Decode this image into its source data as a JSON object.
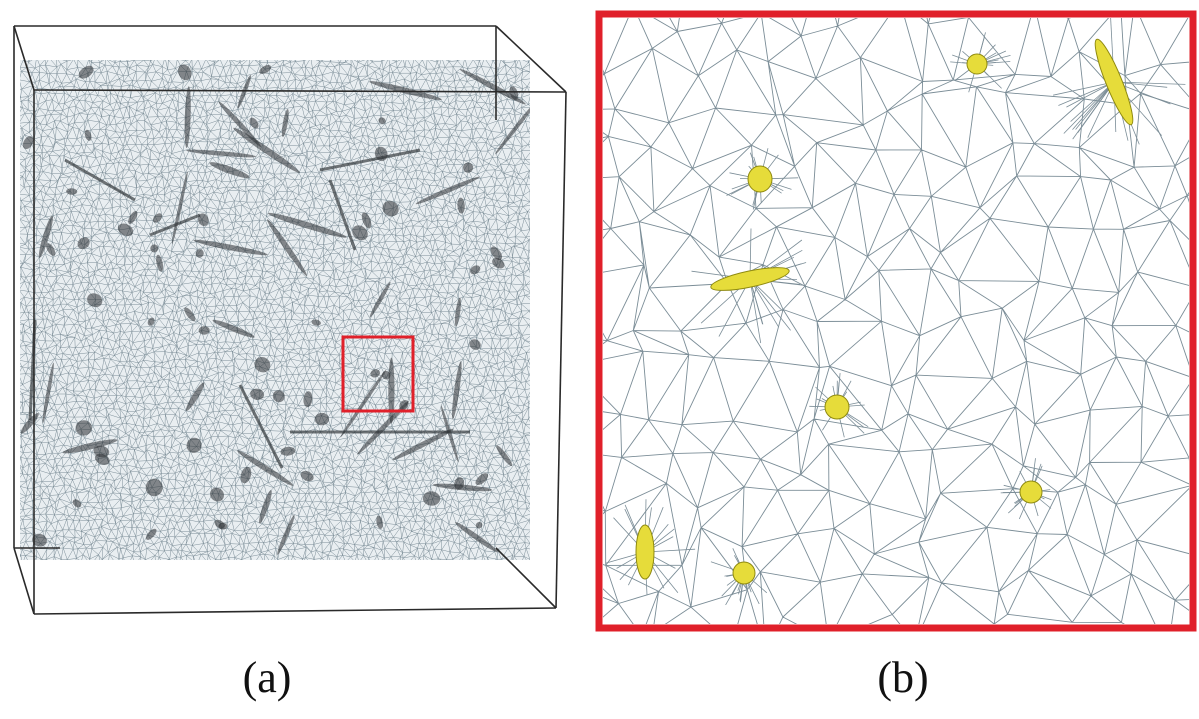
{
  "panels": [
    {
      "id": "a",
      "caption": "(a)"
    },
    {
      "id": "b",
      "caption": "(b)"
    }
  ],
  "colors": {
    "mesh_line": "#7b8d97",
    "mesh_dense": "#2b2f33",
    "box_edge": "#2a2a2a",
    "highlight": "#e0202a",
    "inclusion_fill": "#e6dc3a",
    "inclusion_stroke": "#8f8a10",
    "background": "#ffffff"
  },
  "icons": {
    "panel_a": "fe-mesh-3d-box",
    "panel_b": "mesh-zoom-detail"
  }
}
